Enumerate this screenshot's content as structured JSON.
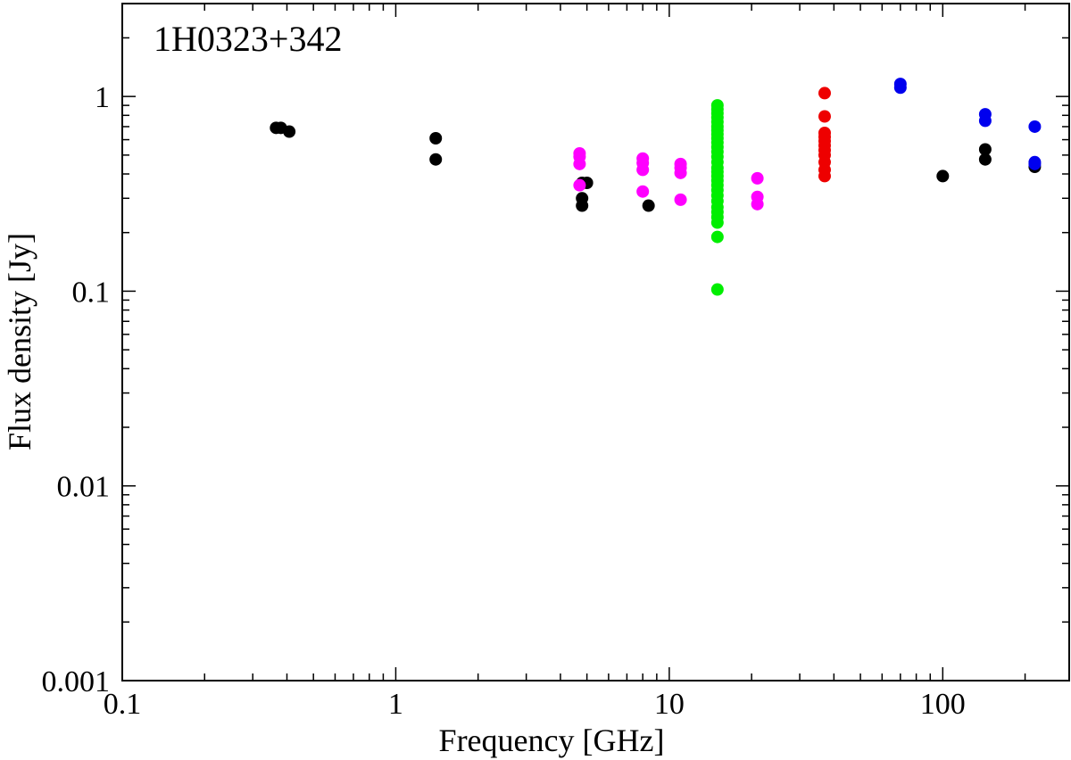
{
  "chart_data": {
    "type": "scatter",
    "title": "",
    "annotation": "1H0323+342",
    "xlabel": "Frequency [GHz]",
    "ylabel": "Flux density [Jy]",
    "xscale": "log",
    "yscale": "log",
    "xlim": [
      0.1,
      290
    ],
    "ylim": [
      0.001,
      3
    ],
    "x_tick_labels": [
      {
        "value": 0.1,
        "label": "0.1"
      },
      {
        "value": 1,
        "label": "1"
      },
      {
        "value": 10,
        "label": "10"
      },
      {
        "value": 100,
        "label": "100"
      }
    ],
    "y_tick_labels": [
      {
        "value": 0.001,
        "label": "0.001"
      },
      {
        "value": 0.01,
        "label": "0.01"
      },
      {
        "value": 0.1,
        "label": "0.1"
      },
      {
        "value": 1,
        "label": "1"
      }
    ],
    "grid": false,
    "legend": "none",
    "series": [
      {
        "color": "#000000",
        "points": [
          [
            0.365,
            0.69
          ],
          [
            0.38,
            0.69
          ],
          [
            0.408,
            0.66
          ],
          [
            1.4,
            0.61
          ],
          [
            1.4,
            0.475
          ],
          [
            4.8,
            0.36
          ],
          [
            4.8,
            0.3
          ],
          [
            4.8,
            0.275
          ],
          [
            5.0,
            0.36
          ],
          [
            8.4,
            0.275
          ],
          [
            100,
            0.39
          ],
          [
            143,
            0.535
          ],
          [
            143,
            0.475
          ],
          [
            217,
            0.435
          ]
        ]
      },
      {
        "color": "#ff00ff",
        "points": [
          [
            4.7,
            0.51
          ],
          [
            4.7,
            0.49
          ],
          [
            4.7,
            0.45
          ],
          [
            4.7,
            0.35
          ],
          [
            8.0,
            0.48
          ],
          [
            8.0,
            0.455
          ],
          [
            8.0,
            0.42
          ],
          [
            8.0,
            0.325
          ],
          [
            11.0,
            0.45
          ],
          [
            11.0,
            0.43
          ],
          [
            11.0,
            0.405
          ],
          [
            11.0,
            0.295
          ],
          [
            21.0,
            0.38
          ],
          [
            21.0,
            0.305
          ],
          [
            21.0,
            0.28
          ]
        ]
      },
      {
        "color": "#00ee00",
        "points": [
          [
            15.0,
            0.9
          ],
          [
            15.0,
            0.86
          ],
          [
            15.0,
            0.82
          ],
          [
            15.0,
            0.78
          ],
          [
            15.0,
            0.74
          ],
          [
            15.0,
            0.7
          ],
          [
            15.0,
            0.67
          ],
          [
            15.0,
            0.64
          ],
          [
            15.0,
            0.61
          ],
          [
            15.0,
            0.58
          ],
          [
            15.0,
            0.55
          ],
          [
            15.0,
            0.52
          ],
          [
            15.0,
            0.49
          ],
          [
            15.0,
            0.46
          ],
          [
            15.0,
            0.43
          ],
          [
            15.0,
            0.41
          ],
          [
            15.0,
            0.39
          ],
          [
            15.0,
            0.37
          ],
          [
            15.0,
            0.35
          ],
          [
            15.0,
            0.33
          ],
          [
            15.0,
            0.31
          ],
          [
            15.0,
            0.29
          ],
          [
            15.0,
            0.27
          ],
          [
            15.0,
            0.255
          ],
          [
            15.0,
            0.24
          ],
          [
            15.0,
            0.225
          ],
          [
            15.0,
            0.19
          ],
          [
            15.0,
            0.102
          ]
        ]
      },
      {
        "color": "#ee0000",
        "points": [
          [
            37.0,
            1.04
          ],
          [
            37.0,
            0.79
          ],
          [
            37.0,
            0.65
          ],
          [
            37.0,
            0.62
          ],
          [
            37.0,
            0.59
          ],
          [
            37.0,
            0.56
          ],
          [
            37.0,
            0.53
          ],
          [
            37.0,
            0.5
          ],
          [
            37.0,
            0.46
          ],
          [
            37.0,
            0.42
          ],
          [
            37.0,
            0.39
          ]
        ]
      },
      {
        "color": "#0000ee",
        "points": [
          [
            70,
            1.16
          ],
          [
            70,
            1.11
          ],
          [
            143,
            0.81
          ],
          [
            143,
            0.75
          ],
          [
            217,
            0.7
          ],
          [
            217,
            0.46
          ],
          [
            217,
            0.45
          ]
        ]
      }
    ]
  }
}
